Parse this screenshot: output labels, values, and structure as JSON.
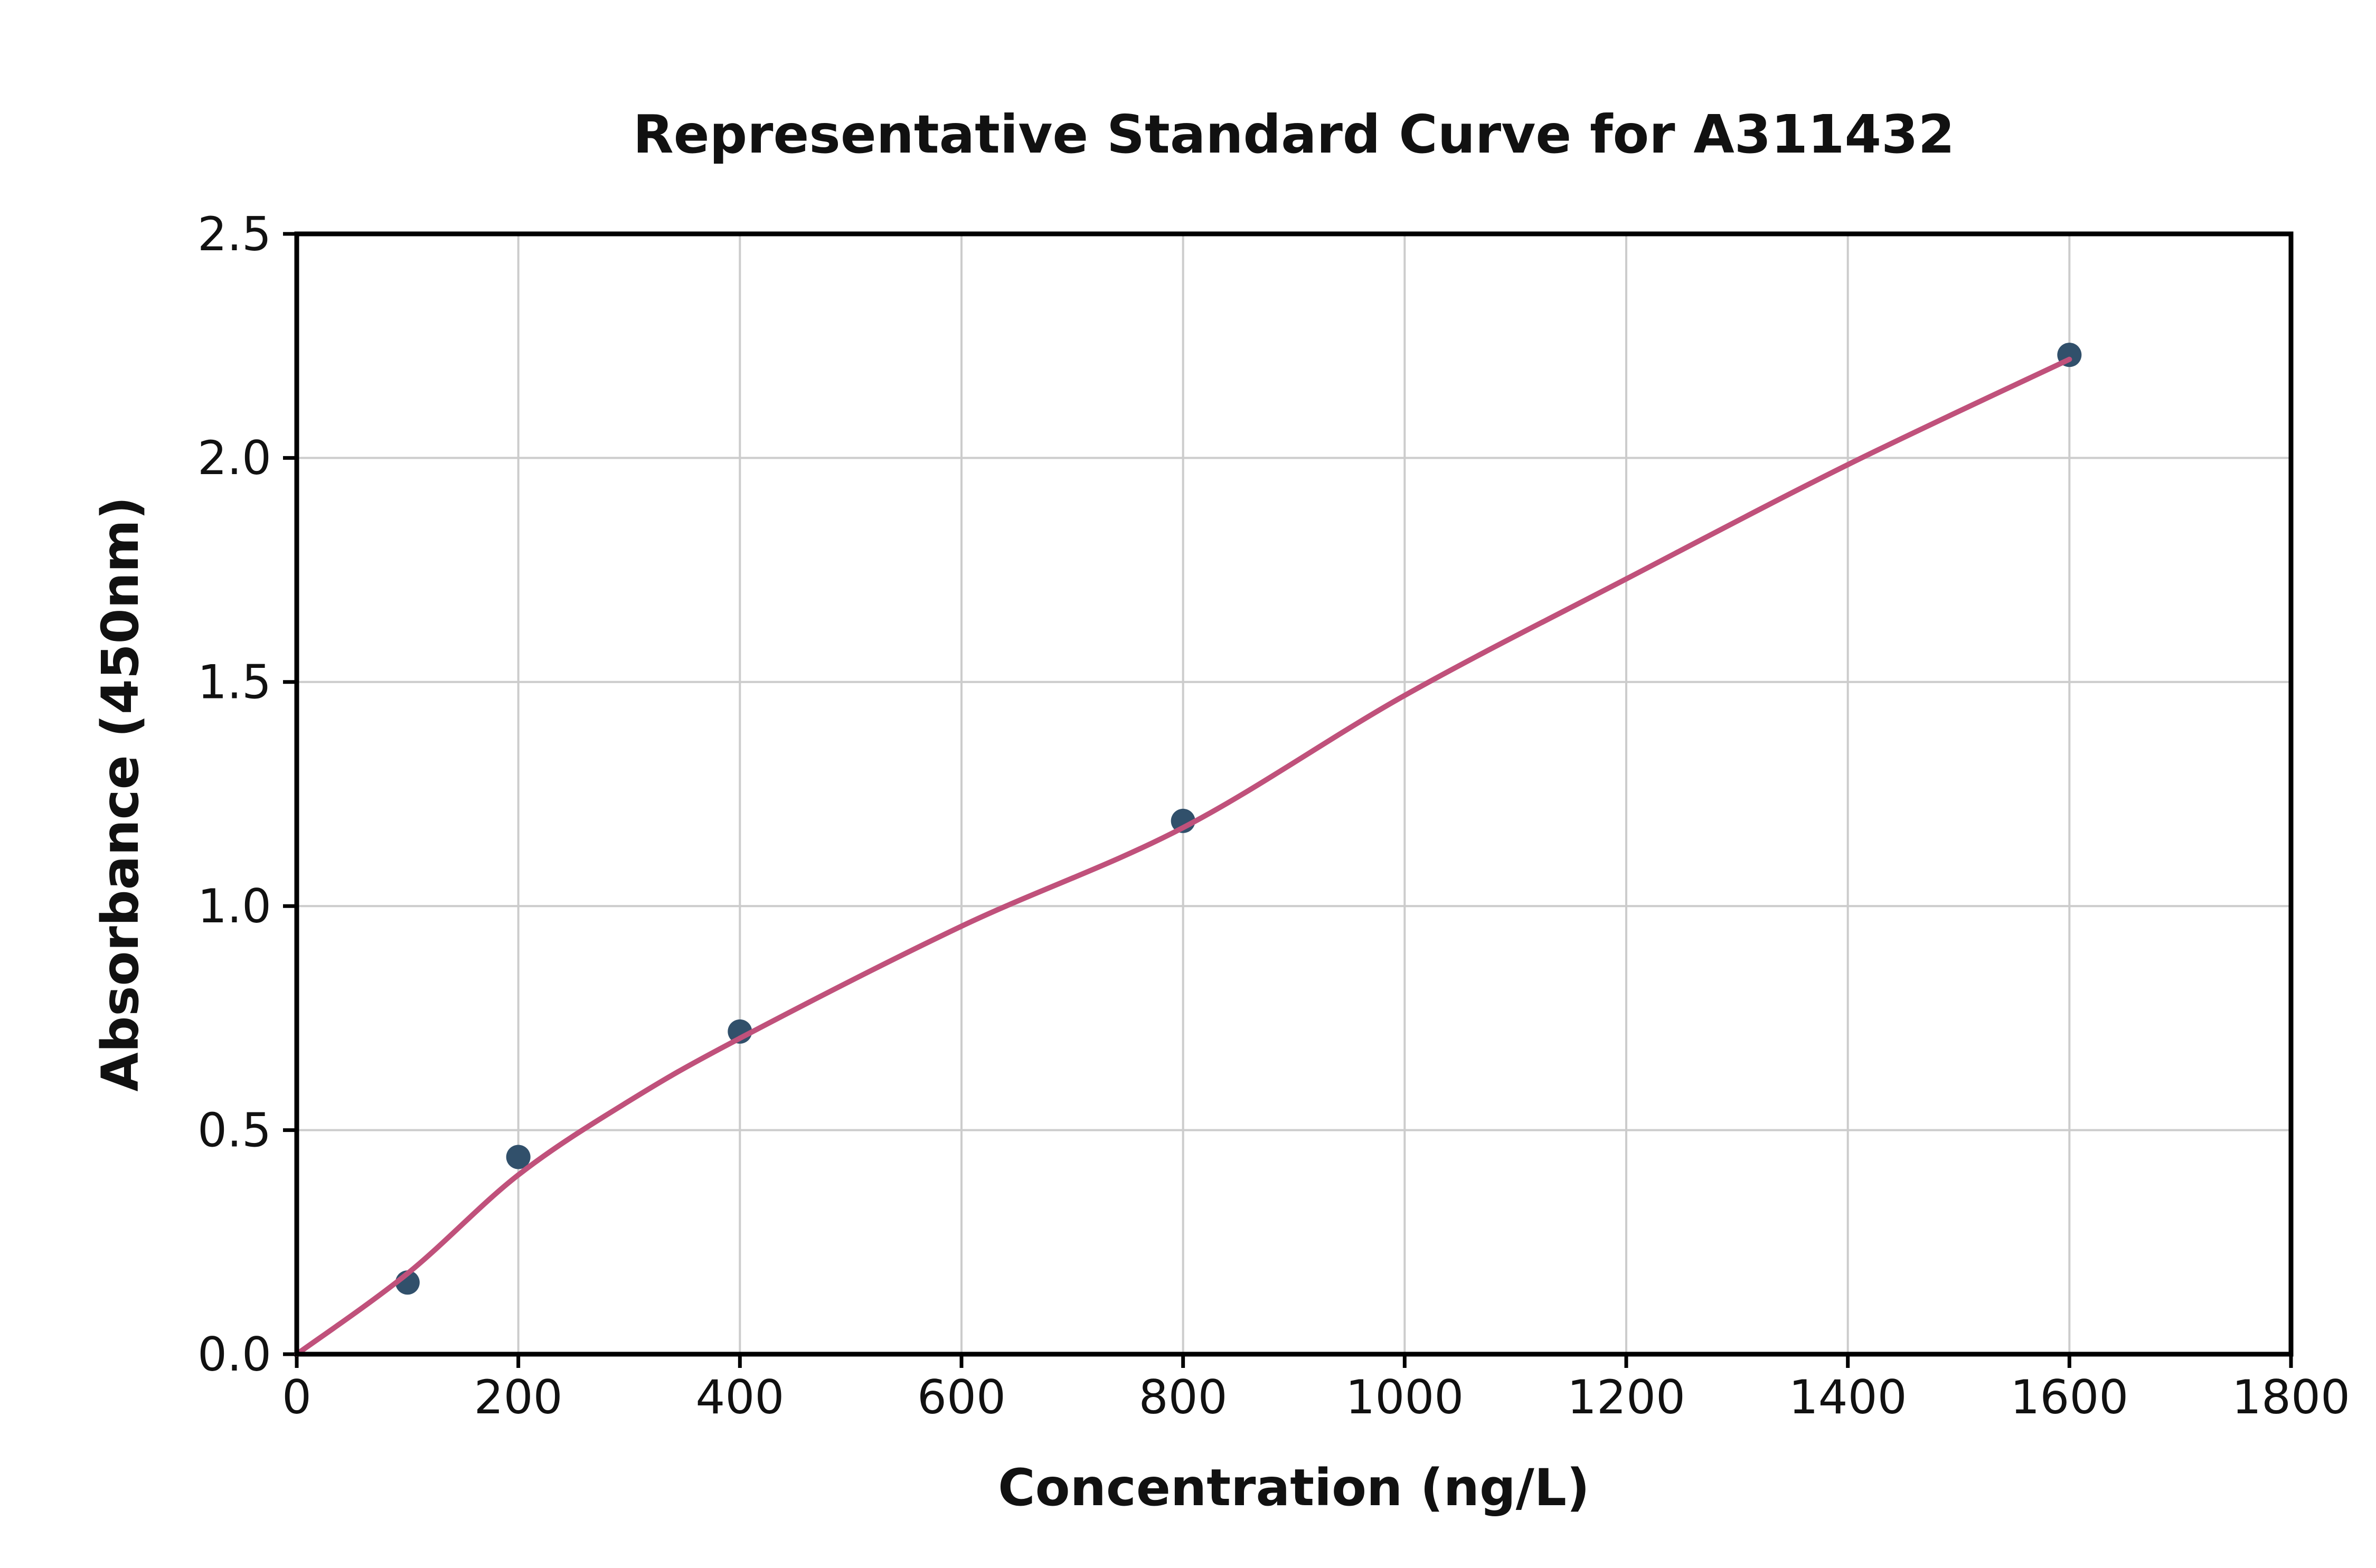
{
  "figure": {
    "background": "#ffffff"
  },
  "chart_data": {
    "type": "scatter",
    "title": "Representative Standard Curve for A311432",
    "xlabel": "Concentration (ng/L)",
    "ylabel": "Absorbance (450nm)",
    "xlim": [
      0,
      1800
    ],
    "ylim": [
      0,
      2.5
    ],
    "xticks": [
      0,
      200,
      400,
      600,
      800,
      1000,
      1200,
      1400,
      1600,
      1800
    ],
    "xtick_labels": [
      "0",
      "200",
      "400",
      "600",
      "800",
      "1000",
      "1200",
      "1400",
      "1600",
      "1800"
    ],
    "yticks": [
      0.0,
      0.5,
      1.0,
      1.5,
      2.0,
      2.5
    ],
    "ytick_labels": [
      "0.0",
      "0.5",
      "1.0",
      "1.5",
      "2.0",
      "2.5"
    ],
    "grid": true,
    "grid_color": "#cccccc",
    "axis_color": "#000000",
    "legend_position": "none",
    "series": [
      {
        "name": "standard-points",
        "type": "scatter",
        "color": "#31506b",
        "x": [
          100,
          200,
          400,
          800,
          1600
        ],
        "y": [
          0.16,
          0.44,
          0.72,
          1.19,
          2.23
        ]
      },
      {
        "name": "fitted-curve",
        "type": "line",
        "color": "#c0517b",
        "points": [
          [
            0,
            0.0
          ],
          [
            100,
            0.18
          ],
          [
            200,
            0.4
          ],
          [
            300,
            0.565
          ],
          [
            400,
            0.705
          ],
          [
            600,
            0.955
          ],
          [
            800,
            1.175
          ],
          [
            1000,
            1.47
          ],
          [
            1200,
            1.73
          ],
          [
            1400,
            1.985
          ],
          [
            1600,
            2.22
          ]
        ]
      }
    ]
  }
}
